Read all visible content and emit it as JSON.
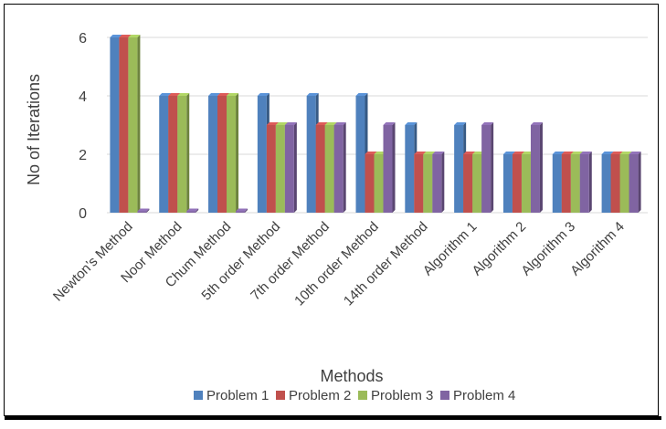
{
  "chart_data": {
    "type": "bar",
    "xlabel": "Methods",
    "ylabel": "No of Iterations",
    "ylim": [
      0,
      6
    ],
    "yticks": [
      0,
      2,
      4,
      6
    ],
    "grid": true,
    "legend_position": "bottom",
    "categories": [
      "Newton’s Method",
      "Noor Method",
      "Chum Method",
      "5th order Method",
      "7th order Method",
      "10th order Method",
      "14th order Method",
      "Algorithm 1",
      "Algorithm 2",
      "Algorithm 3",
      "Algorithm 4"
    ],
    "series": [
      {
        "name": "Problem 1",
        "color": "#4F81BD",
        "values": [
          6,
          4,
          4,
          4,
          4,
          4,
          3,
          3,
          2,
          2,
          2
        ]
      },
      {
        "name": "Problem 2",
        "color": "#C0504D",
        "values": [
          6,
          4,
          4,
          3,
          3,
          2,
          2,
          2,
          2,
          2,
          2
        ]
      },
      {
        "name": "Problem 3",
        "color": "#9BBB59",
        "values": [
          6,
          4,
          4,
          3,
          3,
          2,
          2,
          2,
          2,
          2,
          2
        ]
      },
      {
        "name": "Problem 4",
        "color": "#8064A2",
        "values": [
          0,
          0,
          0,
          3,
          3,
          3,
          2,
          3,
          3,
          2,
          2
        ]
      }
    ]
  }
}
